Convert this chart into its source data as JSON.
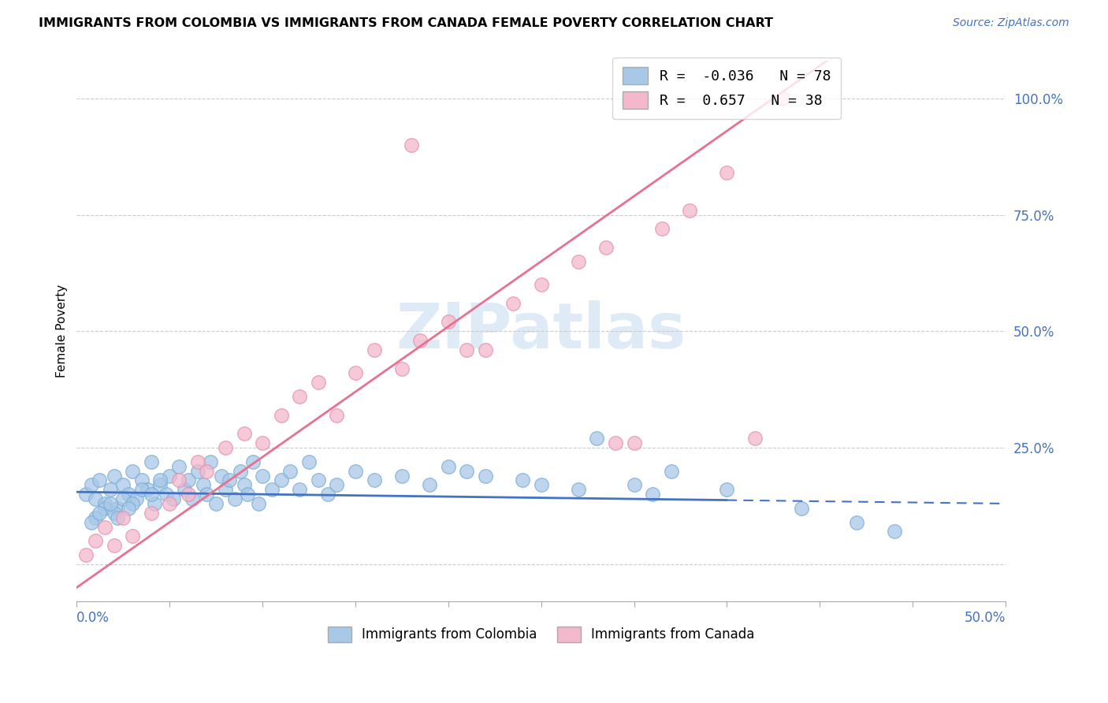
{
  "title": "IMMIGRANTS FROM COLOMBIA VS IMMIGRANTS FROM CANADA FEMALE POVERTY CORRELATION CHART",
  "source": "Source: ZipAtlas.com",
  "ylabel": "Female Poverty",
  "xlim": [
    0,
    0.5
  ],
  "ylim": [
    -0.08,
    1.08
  ],
  "colombia_color": "#a8c8e8",
  "canada_color": "#f4b8cc",
  "colombia_edge_color": "#7aaed4",
  "canada_edge_color": "#e890aa",
  "colombia_line_color": "#4472C4",
  "canada_line_color": "#e87090",
  "colombia_R": -0.036,
  "colombia_N": 78,
  "canada_R": 0.657,
  "canada_N": 38,
  "colombia_intercept": 0.155,
  "colombia_slope": -0.05,
  "canada_intercept": -0.05,
  "canada_slope": 2.8,
  "watermark": "ZIPatlas",
  "colombia_x": [
    0.005,
    0.008,
    0.01,
    0.012,
    0.015,
    0.018,
    0.02,
    0.022,
    0.025,
    0.028,
    0.03,
    0.032,
    0.035,
    0.038,
    0.04,
    0.042,
    0.045,
    0.048,
    0.05,
    0.052,
    0.055,
    0.058,
    0.06,
    0.062,
    0.065,
    0.068,
    0.07,
    0.072,
    0.075,
    0.078,
    0.08,
    0.082,
    0.085,
    0.088,
    0.09,
    0.092,
    0.095,
    0.098,
    0.1,
    0.105,
    0.11,
    0.115,
    0.12,
    0.125,
    0.13,
    0.135,
    0.14,
    0.01,
    0.015,
    0.02,
    0.025,
    0.03,
    0.035,
    0.04,
    0.045,
    0.008,
    0.012,
    0.018,
    0.022,
    0.028,
    0.15,
    0.16,
    0.175,
    0.19,
    0.21,
    0.24,
    0.27,
    0.3,
    0.32,
    0.35,
    0.28,
    0.31,
    0.2,
    0.22,
    0.25,
    0.42,
    0.44,
    0.39
  ],
  "colombia_y": [
    0.15,
    0.17,
    0.14,
    0.18,
    0.13,
    0.16,
    0.19,
    0.12,
    0.17,
    0.15,
    0.2,
    0.14,
    0.18,
    0.16,
    0.22,
    0.13,
    0.17,
    0.15,
    0.19,
    0.14,
    0.21,
    0.16,
    0.18,
    0.14,
    0.2,
    0.17,
    0.15,
    0.22,
    0.13,
    0.19,
    0.16,
    0.18,
    0.14,
    0.2,
    0.17,
    0.15,
    0.22,
    0.13,
    0.19,
    0.16,
    0.18,
    0.2,
    0.16,
    0.22,
    0.18,
    0.15,
    0.17,
    0.1,
    0.12,
    0.11,
    0.14,
    0.13,
    0.16,
    0.15,
    0.18,
    0.09,
    0.11,
    0.13,
    0.1,
    0.12,
    0.2,
    0.18,
    0.19,
    0.17,
    0.2,
    0.18,
    0.16,
    0.17,
    0.2,
    0.16,
    0.27,
    0.15,
    0.21,
    0.19,
    0.17,
    0.09,
    0.07,
    0.12
  ],
  "canada_x": [
    0.005,
    0.01,
    0.015,
    0.02,
    0.025,
    0.03,
    0.04,
    0.05,
    0.055,
    0.06,
    0.065,
    0.07,
    0.08,
    0.09,
    0.1,
    0.11,
    0.12,
    0.13,
    0.14,
    0.15,
    0.16,
    0.175,
    0.185,
    0.2,
    0.21,
    0.22,
    0.235,
    0.25,
    0.27,
    0.285,
    0.3,
    0.315,
    0.33,
    0.35,
    0.365,
    0.38,
    0.29,
    0.18
  ],
  "canada_y": [
    0.02,
    0.05,
    0.08,
    0.04,
    0.1,
    0.06,
    0.11,
    0.13,
    0.18,
    0.15,
    0.22,
    0.2,
    0.25,
    0.28,
    0.26,
    0.32,
    0.36,
    0.39,
    0.32,
    0.41,
    0.46,
    0.42,
    0.48,
    0.52,
    0.46,
    0.46,
    0.56,
    0.6,
    0.65,
    0.68,
    0.26,
    0.72,
    0.76,
    0.84,
    0.27,
    1.0,
    0.26,
    0.9
  ]
}
